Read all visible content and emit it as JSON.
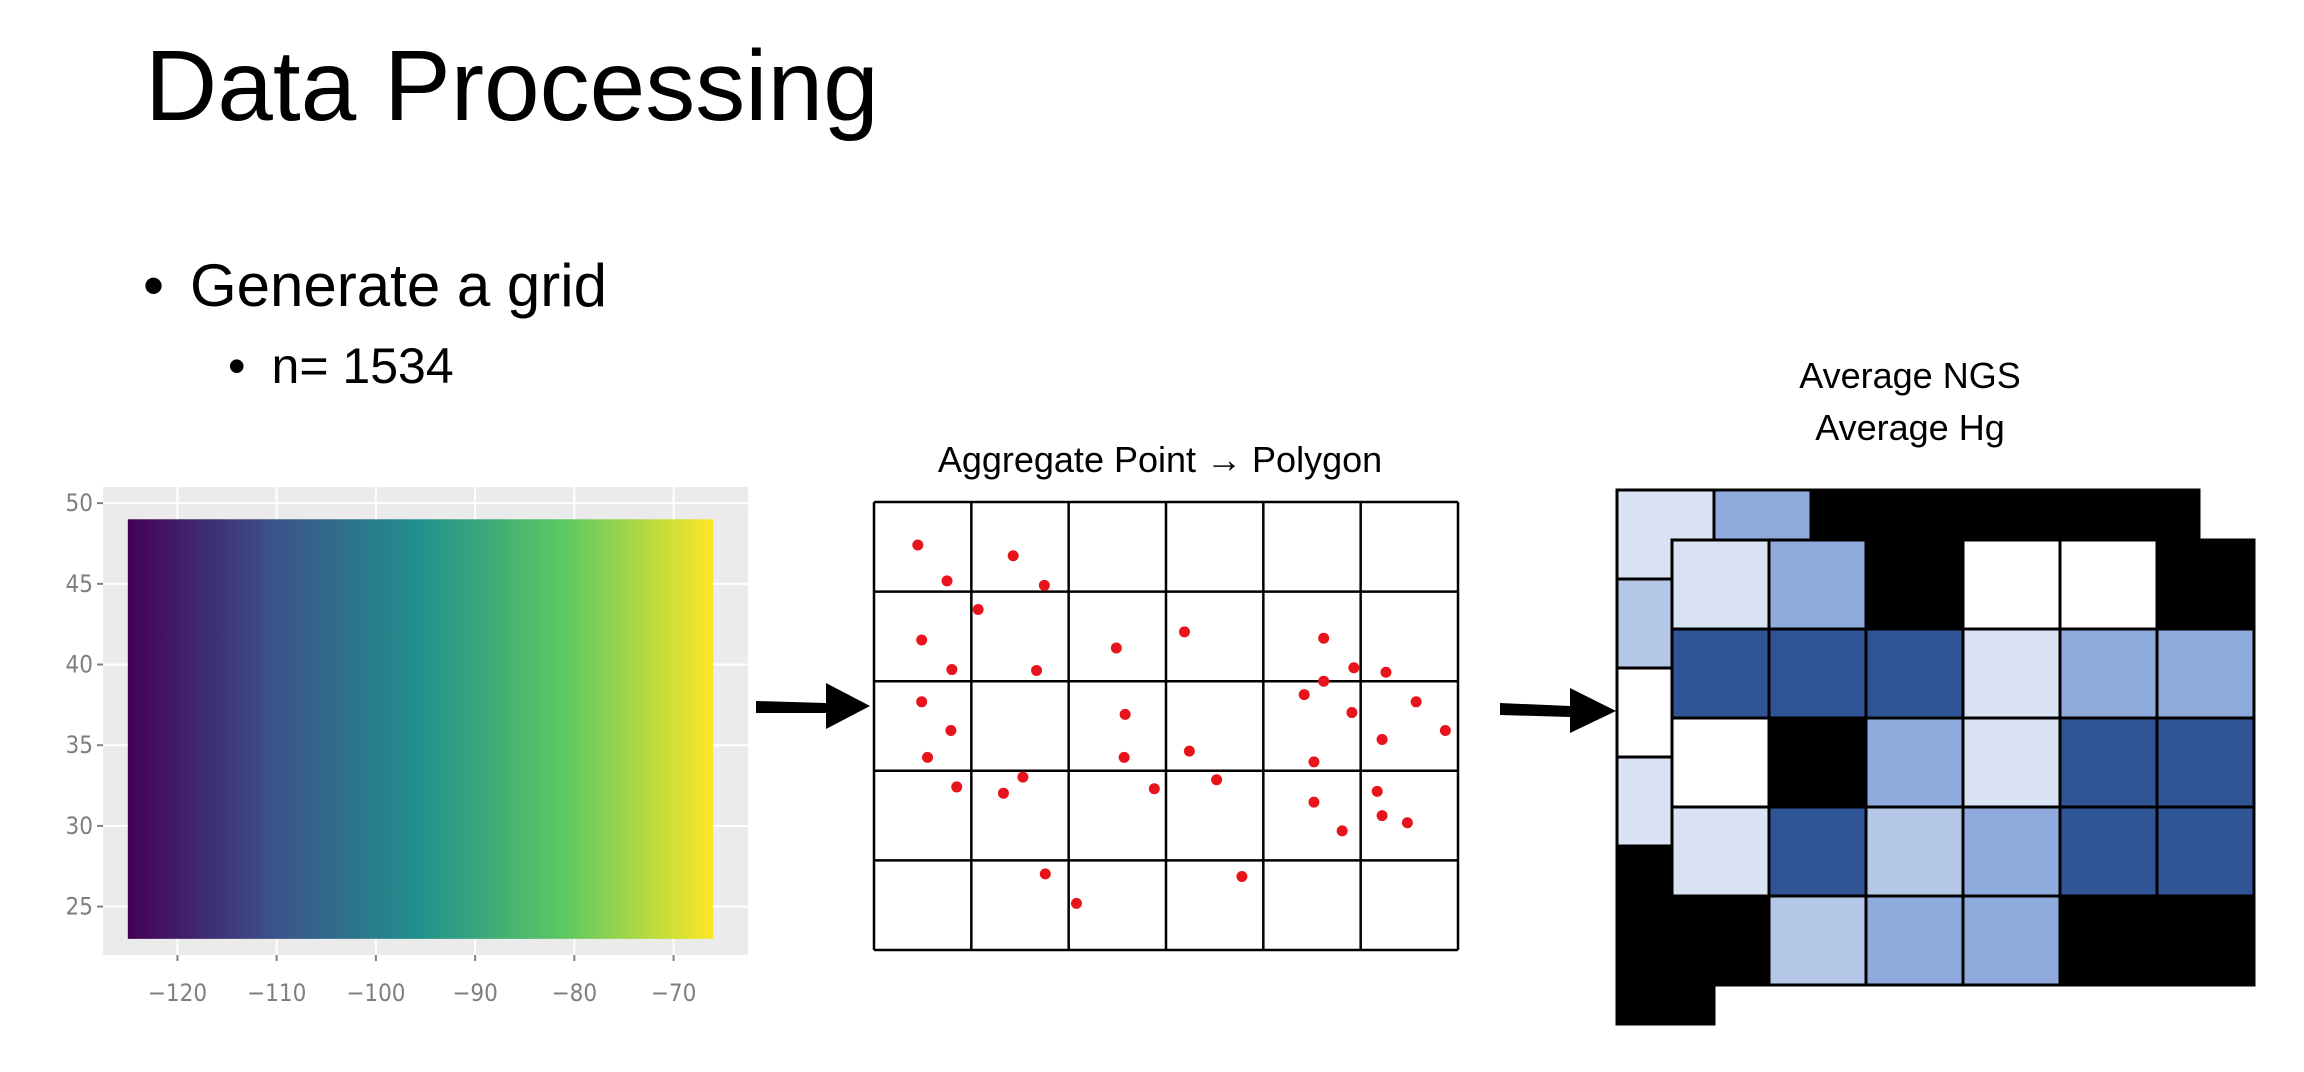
{
  "slide": {
    "title": "Data Processing",
    "bullets": [
      {
        "text": "Generate a grid",
        "level": 1
      },
      {
        "text": "n= 1534",
        "level": 2
      }
    ],
    "bullet_glyph": "•"
  },
  "chart_data": {
    "type": "heatmap",
    "description_of_fill": "horizontal viridis color gradient varying with longitude",
    "x_ticks": [
      -120,
      -110,
      -100,
      -90,
      -80,
      -70
    ],
    "y_ticks": [
      25,
      30,
      35,
      40,
      45,
      50
    ],
    "xlim": [
      -125,
      -66
    ],
    "ylim": [
      23,
      49
    ],
    "colormap": [
      "#440154",
      "#3b528b",
      "#21918c",
      "#5ec962",
      "#fde725"
    ],
    "panel_background": "#ebebeb"
  },
  "aggregate": {
    "caption_left": "Aggregate Point",
    "caption_arrow": "→",
    "caption_right": "Polygon",
    "grid": {
      "cols": 6,
      "rows": 5
    },
    "point_color": "#e8141c",
    "points": [
      [
        0.45,
        0.48
      ],
      [
        0.75,
        0.88
      ],
      [
        1.43,
        0.6
      ],
      [
        1.75,
        0.93
      ],
      [
        1.07,
        1.2
      ],
      [
        0.49,
        1.54
      ],
      [
        0.8,
        1.87
      ],
      [
        1.67,
        1.88
      ],
      [
        2.49,
        1.63
      ],
      [
        3.19,
        1.45
      ],
      [
        0.49,
        2.23
      ],
      [
        0.79,
        2.55
      ],
      [
        0.55,
        2.85
      ],
      [
        0.85,
        3.18
      ],
      [
        1.33,
        3.25
      ],
      [
        1.53,
        3.07
      ],
      [
        2.58,
        2.37
      ],
      [
        2.57,
        2.85
      ],
      [
        2.88,
        3.2
      ],
      [
        3.24,
        2.78
      ],
      [
        3.52,
        3.1
      ],
      [
        1.76,
        4.15
      ],
      [
        2.08,
        4.48
      ],
      [
        3.78,
        4.18
      ],
      [
        4.62,
        1.52
      ],
      [
        4.93,
        1.85
      ],
      [
        4.62,
        2.0
      ],
      [
        4.42,
        2.15
      ],
      [
        5.26,
        1.9
      ],
      [
        5.57,
        2.23
      ],
      [
        5.87,
        2.55
      ],
      [
        4.91,
        2.35
      ],
      [
        5.22,
        2.65
      ],
      [
        4.52,
        2.9
      ],
      [
        5.17,
        3.23
      ],
      [
        4.52,
        3.35
      ],
      [
        5.22,
        3.5
      ],
      [
        4.81,
        3.67
      ],
      [
        5.48,
        3.58
      ]
    ]
  },
  "result": {
    "caption_line1": "Average NGS",
    "caption_line2": "Average Hg",
    "colors": {
      "k": "#000000",
      "w": "#ffffff",
      "l": "#dae3f3",
      "m": "#b4c7e7",
      "s": "#8faadc",
      "d": "#2f5597"
    },
    "back_top_row": [
      "l",
      "s",
      "k",
      "k",
      "k",
      "k"
    ],
    "back_left_col": [
      "l",
      "m",
      "w",
      "l",
      "k",
      "k"
    ],
    "front_cells": [
      [
        "l",
        "s",
        "k",
        "w",
        "w",
        "k"
      ],
      [
        "d",
        "d",
        "d",
        "l",
        "s",
        "s"
      ],
      [
        "w",
        "k",
        "s",
        "l",
        "d",
        "d"
      ],
      [
        "l",
        "d",
        "m",
        "s",
        "d",
        "d"
      ],
      [
        "k",
        "m",
        "s",
        "s",
        "k",
        "k"
      ]
    ]
  },
  "arrows": {
    "color": "#000000"
  }
}
